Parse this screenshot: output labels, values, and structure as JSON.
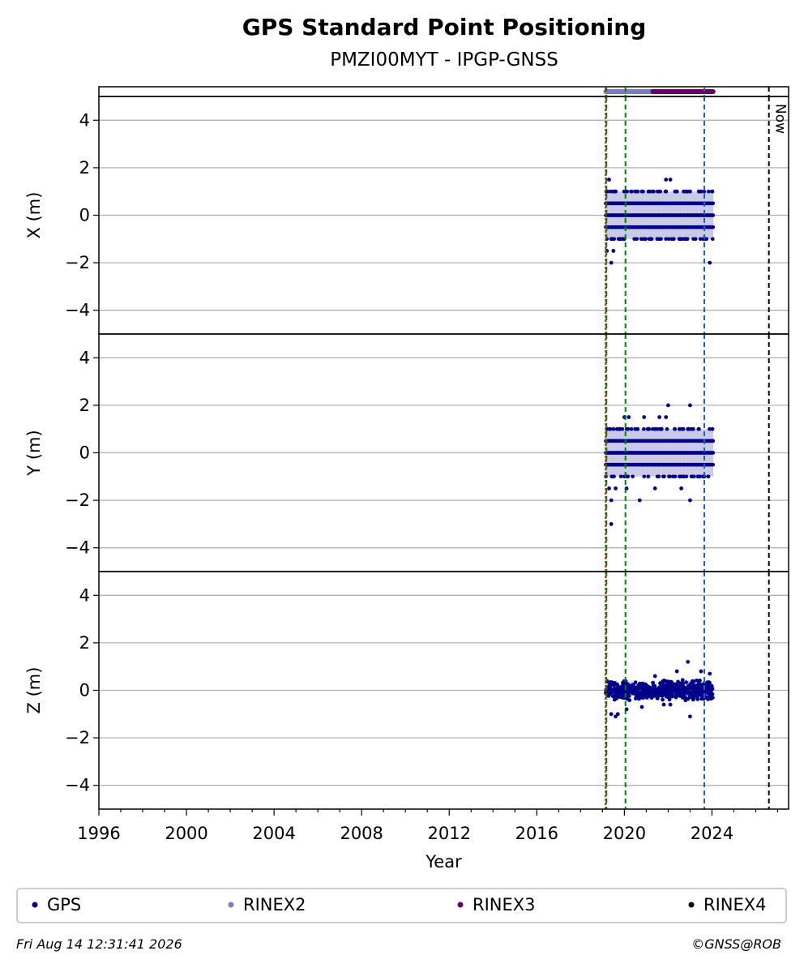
{
  "chart_data": {
    "type": "scatter",
    "title": "GPS Standard Point Positioning",
    "subtitle": "PMZI00MYT - IPGP-GNSS",
    "xlabel": "Year",
    "xlim": [
      1996,
      2027.5
    ],
    "xticks": [
      "1996",
      "2000",
      "2004",
      "2008",
      "2012",
      "2016",
      "2020",
      "2024"
    ],
    "now_label": "Now",
    "now_year": 2026.6,
    "event_lines": [
      {
        "year": 2019.15,
        "color": "#cc0000"
      },
      {
        "year": 2019.18,
        "color": "#008000"
      },
      {
        "year": 2020.05,
        "color": "#008000"
      },
      {
        "year": 2023.65,
        "color": "#1f5fbf"
      }
    ],
    "rinex_bar": {
      "segments": [
        {
          "name": "RINEX2",
          "start": 2019.15,
          "end": 2021.3,
          "color": "#7b7bbf"
        },
        {
          "name": "RINEX3",
          "start": 2021.3,
          "end": 2024.05,
          "color": "#660066"
        }
      ]
    },
    "panels": [
      {
        "ylabel": "X (m)",
        "ylim": [
          -5,
          5
        ],
        "yticks": [
          "−4",
          "−2",
          "0",
          "2",
          "4"
        ],
        "levels": [
          -0.5,
          0,
          0.5
        ],
        "x_range": [
          2019.15,
          2024.05
        ],
        "outliers": [
          [
            2019.3,
            1.5
          ],
          [
            2019.2,
            1.0
          ],
          [
            2019.6,
            1.0
          ],
          [
            2019.4,
            -1.0
          ],
          [
            2019.5,
            -1.5
          ],
          [
            2019.2,
            -1.5
          ],
          [
            2019.4,
            -2.0
          ],
          [
            2020.0,
            -1.0
          ],
          [
            2020.5,
            1.0
          ],
          [
            2020.9,
            -1.0
          ],
          [
            2021.2,
            -1.0
          ],
          [
            2021.5,
            -1.0
          ],
          [
            2021.9,
            1.0
          ],
          [
            2021.9,
            1.5
          ],
          [
            2022.1,
            1.5
          ],
          [
            2022.4,
            1.0
          ],
          [
            2022.8,
            -1.0
          ],
          [
            2023.0,
            1.0
          ],
          [
            2023.4,
            1.0
          ],
          [
            2023.7,
            -1.0
          ],
          [
            2024.0,
            1.0
          ],
          [
            2023.9,
            -2.0
          ],
          [
            2020.8,
            1.0
          ],
          [
            2019.8,
            -1.0
          ]
        ]
      },
      {
        "ylabel": "Y (m)",
        "ylim": [
          -5,
          5
        ],
        "yticks": [
          "−4",
          "−2",
          "0",
          "2",
          "4"
        ],
        "levels": [
          -0.5,
          0,
          0.5
        ],
        "x_range": [
          2019.15,
          2024.05
        ],
        "outliers": [
          [
            2019.2,
            1.0
          ],
          [
            2019.5,
            1.0
          ],
          [
            2019.3,
            -1.5
          ],
          [
            2019.6,
            -1.5
          ],
          [
            2019.4,
            -2.0
          ],
          [
            2019.4,
            -3.0
          ],
          [
            2019.8,
            1.0
          ],
          [
            2020.0,
            1.5
          ],
          [
            2020.2,
            1.5
          ],
          [
            2020.1,
            -1.5
          ],
          [
            2020.6,
            1.0
          ],
          [
            2020.9,
            1.5
          ],
          [
            2021.1,
            1.0
          ],
          [
            2021.4,
            -1.5
          ],
          [
            2021.6,
            1.5
          ],
          [
            2021.7,
            1.0
          ],
          [
            2021.9,
            1.5
          ],
          [
            2022.0,
            2.0
          ],
          [
            2022.3,
            1.0
          ],
          [
            2022.6,
            -1.5
          ],
          [
            2022.9,
            1.0
          ],
          [
            2023.0,
            2.0
          ],
          [
            2023.0,
            -2.0
          ],
          [
            2023.6,
            -1.0
          ],
          [
            2023.9,
            0.5
          ],
          [
            2020.7,
            -2.0
          ]
        ]
      },
      {
        "ylabel": "Z (m)",
        "ylim": [
          -5,
          5
        ],
        "yticks": [
          "−4",
          "−2",
          "0",
          "2",
          "4"
        ],
        "levels": [],
        "x_range": [
          2019.15,
          2024.05
        ],
        "band": [
          -0.45,
          0.45
        ],
        "outliers": [
          [
            2019.4,
            -1.0
          ],
          [
            2019.6,
            -1.1
          ],
          [
            2019.7,
            -1.0
          ],
          [
            2020.1,
            -0.8
          ],
          [
            2020.8,
            -0.7
          ],
          [
            2021.4,
            0.6
          ],
          [
            2021.8,
            -0.6
          ],
          [
            2022.4,
            0.8
          ],
          [
            2022.9,
            1.2
          ],
          [
            2023.0,
            -1.1
          ],
          [
            2023.5,
            0.8
          ],
          [
            2023.9,
            0.7
          ],
          [
            2022.1,
            -0.6
          ]
        ]
      }
    ],
    "legend": {
      "placement": "bottom",
      "entries": [
        {
          "name": "GPS",
          "color": "#00008b"
        },
        {
          "name": "RINEX2",
          "color": "#7b7bbf"
        },
        {
          "name": "RINEX3",
          "color": "#660066"
        },
        {
          "name": "RINEX4",
          "color": "#220022"
        }
      ]
    },
    "footer": {
      "timestamp": "Fri Aug 14 12:31:41 2026",
      "credit": "©GNSS@ROB"
    },
    "grid": "y",
    "point_color": "#00008b"
  }
}
